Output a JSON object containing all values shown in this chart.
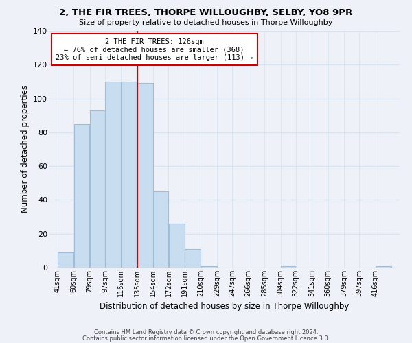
{
  "title": "2, THE FIR TREES, THORPE WILLOUGHBY, SELBY, YO8 9PR",
  "subtitle": "Size of property relative to detached houses in Thorpe Willoughby",
  "xlabel": "Distribution of detached houses by size in Thorpe Willoughby",
  "ylabel": "Number of detached properties",
  "footer_line1": "Contains HM Land Registry data © Crown copyright and database right 2024.",
  "footer_line2": "Contains public sector information licensed under the Open Government Licence 3.0.",
  "bin_labels": [
    "41sqm",
    "60sqm",
    "79sqm",
    "97sqm",
    "116sqm",
    "135sqm",
    "154sqm",
    "172sqm",
    "191sqm",
    "210sqm",
    "229sqm",
    "247sqm",
    "266sqm",
    "285sqm",
    "304sqm",
    "322sqm",
    "341sqm",
    "360sqm",
    "379sqm",
    "397sqm",
    "416sqm"
  ],
  "bar_heights": [
    9,
    85,
    93,
    110,
    110,
    109,
    45,
    26,
    11,
    1,
    0,
    0,
    0,
    0,
    1,
    0,
    0,
    0,
    0,
    0,
    1
  ],
  "bar_color": "#c8ddf0",
  "bar_edge_color": "#a0bcd8",
  "vline_x_label": "135sqm",
  "vline_color": "#cc0000",
  "annotation_title": "2 THE FIR TREES: 126sqm",
  "annotation_line1": "← 76% of detached houses are smaller (368)",
  "annotation_line2": "23% of semi-detached houses are larger (113) →",
  "annotation_box_color": "white",
  "annotation_box_edge": "#cc0000",
  "ylim": [
    0,
    140
  ],
  "background_color": "#eef2f8",
  "grid_color": "#d8e4f0",
  "yticks": [
    0,
    20,
    40,
    60,
    80,
    100,
    120,
    140
  ]
}
